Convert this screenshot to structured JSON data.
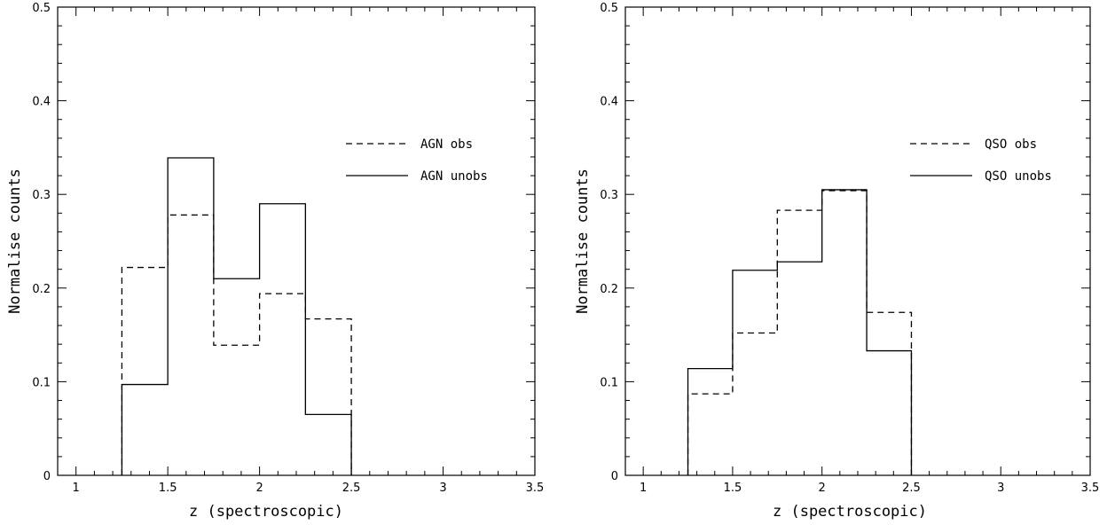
{
  "chart_data": [
    {
      "type": "histogram",
      "xlabel": "z (spectroscopic)",
      "ylabel": "Normalise counts",
      "xlim": [
        0.9,
        3.5
      ],
      "ylim": [
        0,
        0.5
      ],
      "xticks": [
        "1",
        "1.5",
        "2",
        "2.5",
        "3",
        "3.5"
      ],
      "yticks": [
        "0",
        "0.1",
        "0.2",
        "0.3",
        "0.4",
        "0.5"
      ],
      "bin_edges": [
        1.25,
        1.5,
        1.75,
        2.0,
        2.25,
        2.5
      ],
      "legend_position": "upper-right",
      "series": [
        {
          "name": "AGN obs",
          "style": "dashed",
          "values": [
            0.222,
            0.278,
            0.139,
            0.194,
            0.167
          ]
        },
        {
          "name": "AGN unobs",
          "style": "solid",
          "values": [
            0.097,
            0.339,
            0.21,
            0.29,
            0.065
          ]
        }
      ]
    },
    {
      "type": "histogram",
      "xlabel": "z (spectroscopic)",
      "ylabel": "Normalise counts",
      "xlim": [
        0.9,
        3.5
      ],
      "ylim": [
        0,
        0.5
      ],
      "xticks": [
        "1",
        "1.5",
        "2",
        "2.5",
        "3",
        "3.5"
      ],
      "yticks": [
        "0",
        "0.1",
        "0.2",
        "0.3",
        "0.4",
        "0.5"
      ],
      "bin_edges": [
        1.25,
        1.5,
        1.75,
        2.0,
        2.25,
        2.5
      ],
      "legend_position": "upper-right",
      "series": [
        {
          "name": "QSO obs",
          "style": "dashed",
          "values": [
            0.087,
            0.152,
            0.283,
            0.304,
            0.174
          ]
        },
        {
          "name": "QSO unobs",
          "style": "solid",
          "values": [
            0.114,
            0.219,
            0.228,
            0.305,
            0.133
          ]
        }
      ]
    }
  ]
}
